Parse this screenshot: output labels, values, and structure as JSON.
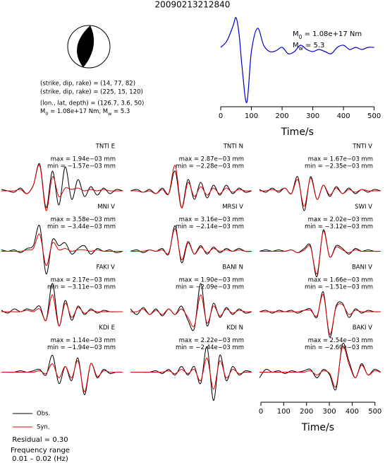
{
  "title": "20090213212840",
  "focal_mechanism": {
    "lines": [
      "(strike, dip, rake) = (14, 77, 82)",
      "(strike, dip, rake) = (225, 15, 120)",
      "(lon., lat, depth) = (126.7, 3.6, 50)"
    ],
    "moment_line": [
      "M",
      "0",
      " = 1.08e+17 Nm, M",
      "w",
      " = 5.3"
    ]
  },
  "chart_data": [
    {
      "type": "line",
      "color": "#0000cc",
      "x": [
        0,
        20,
        40,
        50,
        60,
        70,
        85,
        100,
        120,
        140,
        160,
        180,
        200,
        220,
        240,
        260,
        280,
        300,
        320,
        340,
        360,
        380,
        400,
        420,
        440,
        460,
        480,
        500
      ],
      "values": [
        0.3,
        0.45,
        0.8,
        1.0,
        0.6,
        -0.2,
        -1.0,
        0.2,
        0.75,
        0.35,
        0.2,
        0.22,
        0.3,
        0.15,
        0.2,
        0.35,
        0.25,
        0.2,
        0.25,
        0.2,
        0.15,
        0.3,
        0.35,
        0.25,
        0.3,
        0.25,
        0.3,
        0.3
      ],
      "xlim": [
        0,
        510
      ],
      "ylim": [
        -1,
        1
      ],
      "xticks": [
        0,
        100,
        200,
        300,
        400,
        500
      ],
      "xlabel": "Time/s",
      "annotations": [
        [
          "M",
          "0",
          " = 1.08e+17 Nm"
        ],
        [
          "M",
          "w",
          " = 5.3"
        ]
      ]
    },
    {
      "type": "waveform",
      "label": "TNTI E",
      "max": "max = 1.94e−03 mm",
      "min": "min = −1.57e−03 mm",
      "ylim": [
        -1,
        1
      ],
      "series": [
        {
          "color": "#000000",
          "values": [
            0.05,
            0,
            -0.05,
            0.1,
            -0.1,
            0.2,
            0.95,
            -0.6,
            0.7,
            -0.5,
            0.85,
            -0.3,
            0.4,
            -0.2,
            0.15,
            -0.15,
            0.1,
            -0.1,
            0.05,
            0
          ]
        },
        {
          "color": "#e00000",
          "values": [
            0,
            0,
            0,
            0.05,
            -0.1,
            0.2,
            0.9,
            -0.7,
            0.5,
            -0.2,
            0.1,
            0.05,
            0.1,
            0,
            0.05,
            0,
            0.05,
            0,
            0,
            0
          ]
        }
      ]
    },
    {
      "type": "waveform",
      "label": "TNTI N",
      "max": "max = 2.87e−03 mm",
      "min": "min = −2.28e−03 mm",
      "ylim": [
        -1,
        1
      ],
      "series": [
        {
          "color": "#000000",
          "values": [
            0,
            0.05,
            -0.05,
            0.05,
            -0.1,
            0.1,
            -0.1,
            0.7,
            -0.6,
            0.4,
            -0.3,
            0.3,
            -0.25,
            0.2,
            -0.15,
            0.2,
            -0.1,
            0.1,
            -0.05,
            0
          ]
        },
        {
          "color": "#e00000",
          "values": [
            0,
            0,
            -0.05,
            0,
            -0.1,
            0.05,
            -0.1,
            0.9,
            -0.6,
            0.3,
            -0.2,
            0.15,
            -0.15,
            0.1,
            -0.1,
            0.1,
            -0.05,
            0.05,
            0,
            0
          ]
        }
      ]
    },
    {
      "type": "waveform",
      "label": "TNTI V",
      "max": "max = 1.67e−03 mm",
      "min": "min = −2.35e−03 mm",
      "ylim": [
        -1,
        1
      ],
      "series": [
        {
          "color": "#000000",
          "values": [
            0.05,
            -0.05,
            0.1,
            -0.05,
            0.1,
            -0.1,
            0.5,
            -0.7,
            0.5,
            -0.3,
            0.2,
            -0.2,
            0.15,
            -0.1,
            0.1,
            -0.1,
            0.05,
            -0.05,
            0.05,
            0
          ]
        },
        {
          "color": "#e00000",
          "values": [
            0,
            0,
            0.05,
            0,
            0.1,
            -0.1,
            0.4,
            -0.55,
            0.45,
            -0.3,
            0.2,
            -0.15,
            0.1,
            -0.1,
            0.05,
            -0.05,
            0.05,
            0,
            0,
            0
          ]
        }
      ]
    },
    {
      "type": "waveform",
      "label": "MNI V",
      "max": "max = 3.58e−03 mm",
      "min": "min = −3.44e−03 mm",
      "ylim": [
        -1,
        1
      ],
      "series": [
        {
          "color": "#000000",
          "values": [
            0.05,
            0,
            0.05,
            -0.05,
            0.1,
            0.2,
            0.9,
            -0.8,
            0.4,
            0.2,
            0.3,
            -0.1,
            0.1,
            0.2,
            -0.1,
            0.1,
            0,
            0.05,
            -0.05,
            0
          ]
        },
        {
          "color": "#e00000",
          "values": [
            0,
            0,
            0,
            0,
            0.05,
            0.1,
            0.6,
            -0.5,
            0.3,
            0.05,
            0.1,
            0,
            0.05,
            0.05,
            0,
            0.05,
            0,
            0,
            0,
            0
          ]
        }
      ]
    },
    {
      "type": "waveform",
      "label": "MRSI V",
      "max": "max = 3.16e−03 mm",
      "min": "min = −2.14e−03 mm",
      "ylim": [
        -1,
        1
      ],
      "series": [
        {
          "color": "#000000",
          "values": [
            0,
            0.05,
            -0.05,
            0.05,
            0,
            0.1,
            -0.1,
            0.9,
            -0.4,
            0.3,
            -0.1,
            0.2,
            -0.1,
            0.15,
            -0.05,
            0.1,
            0,
            0.1,
            0,
            0
          ]
        },
        {
          "color": "#e00000",
          "values": [
            0,
            0,
            0,
            0.05,
            0,
            0.05,
            -0.05,
            0.8,
            -0.3,
            0.35,
            -0.1,
            0.15,
            -0.05,
            0.1,
            0,
            0.05,
            0,
            0.05,
            0,
            0
          ]
        }
      ]
    },
    {
      "type": "waveform",
      "label": "SWI V",
      "max": "max = 2.02e−03 mm",
      "min": "min = −3.12e−03 mm",
      "ylim": [
        -1,
        1
      ],
      "series": [
        {
          "color": "#000000",
          "values": [
            0,
            0.05,
            0,
            0.05,
            0,
            0.05,
            -0.05,
            0.1,
            0.2,
            -0.9,
            0.75,
            -0.2,
            0.2,
            0.1,
            -0.1,
            0.1,
            0,
            0.05,
            0,
            0
          ]
        },
        {
          "color": "#e00000",
          "values": [
            0,
            0,
            0,
            0,
            0,
            0.05,
            -0.05,
            0.05,
            0.15,
            -0.8,
            0.7,
            -0.2,
            0.15,
            0.05,
            -0.05,
            0.05,
            0,
            0,
            0,
            0
          ]
        }
      ]
    },
    {
      "type": "waveform",
      "label": "FAKI V",
      "max": "max = 2.17e−03 mm",
      "min": "min = −3.11e−03 mm",
      "ylim": [
        -1,
        1
      ],
      "series": [
        {
          "color": "#000000",
          "values": [
            0.05,
            -0.05,
            0.1,
            0,
            0.1,
            0.05,
            0.2,
            -0.3,
            1.0,
            -0.5,
            0.4,
            -0.3,
            0.2,
            -0.1,
            0.1,
            -0.05,
            0.05,
            0,
            0,
            0
          ]
        },
        {
          "color": "#e00000",
          "values": [
            0,
            0,
            0,
            0,
            0.05,
            0,
            0.1,
            -0.3,
            0.6,
            -0.5,
            0.3,
            -0.2,
            0.15,
            -0.05,
            0.05,
            0,
            0,
            0,
            0,
            0
          ]
        }
      ]
    },
    {
      "type": "waveform",
      "label": "BANI N",
      "max": "max = 1.90e−03 mm",
      "min": "min = −2.09e−03 mm",
      "ylim": [
        -1,
        1
      ],
      "series": [
        {
          "color": "#000000",
          "values": [
            0.1,
            -0.1,
            0.15,
            -0.1,
            0.1,
            -0.15,
            0.1,
            -0.1,
            0.2,
            -0.3,
            -0.6,
            1.0,
            -0.5,
            0.3,
            -0.2,
            0.15,
            -0.1,
            0.1,
            -0.05,
            0
          ]
        },
        {
          "color": "#e00000",
          "values": [
            0,
            0,
            0.1,
            -0.1,
            0.05,
            -0.1,
            0.1,
            -0.1,
            0.1,
            -0.2,
            -0.5,
            0.6,
            -0.4,
            0.2,
            -0.15,
            0.1,
            -0.05,
            0.05,
            0,
            0
          ]
        }
      ]
    },
    {
      "type": "waveform",
      "label": "BANI V",
      "max": "max = 1.66e−03 mm",
      "min": "min = −1.51e−03 mm",
      "ylim": [
        -1,
        1
      ],
      "series": [
        {
          "color": "#000000",
          "values": [
            0,
            0.05,
            -0.05,
            0.05,
            0,
            0.05,
            -0.05,
            0.05,
            0.1,
            -0.2,
            0.7,
            -0.9,
            0.2,
            0.3,
            -0.2,
            0.1,
            -0.05,
            0.05,
            0,
            0
          ]
        },
        {
          "color": "#e00000",
          "values": [
            0,
            0,
            0,
            0,
            0,
            0,
            0,
            0.05,
            0.05,
            -0.15,
            0.6,
            -0.8,
            0.15,
            0.25,
            -0.1,
            0.05,
            0,
            0,
            0,
            0
          ]
        }
      ]
    },
    {
      "type": "waveform",
      "label": "KDI E",
      "max": "max = 1.14e−03 mm",
      "min": "min = −1.94e−03 mm",
      "ylim": [
        -1,
        1
      ],
      "series": [
        {
          "color": "#000000",
          "values": [
            0,
            0,
            0,
            0.05,
            0,
            0.05,
            0.1,
            -0.1,
            0.6,
            -0.4,
            0.2,
            -0.3,
            0.5,
            -0.8,
            0.3,
            -0.2,
            0.1,
            -0.05,
            0,
            0
          ]
        },
        {
          "color": "#e00000",
          "values": [
            0,
            0,
            0,
            0,
            0,
            0,
            0.05,
            -0.05,
            0.3,
            -0.2,
            0.2,
            -0.2,
            0.4,
            -0.7,
            0.3,
            -0.15,
            0.05,
            0,
            0,
            0
          ]
        }
      ]
    },
    {
      "type": "waveform",
      "label": "KDI N",
      "max": "max = 2.22e−03 mm",
      "min": "min = −2.44e−03 mm",
      "ylim": [
        -1,
        1
      ],
      "series": [
        {
          "color": "#000000",
          "values": [
            0,
            0,
            0,
            0,
            0.05,
            -0.05,
            0.1,
            -0.1,
            0.2,
            -0.1,
            0.2,
            -0.4,
            0.9,
            -1.0,
            0.6,
            -0.3,
            0.2,
            -0.1,
            0.05,
            0
          ]
        },
        {
          "color": "#e00000",
          "values": [
            0,
            0,
            0,
            0,
            0,
            0,
            0.05,
            -0.05,
            0.1,
            -0.05,
            0.1,
            -0.3,
            0.5,
            -0.6,
            0.4,
            -0.2,
            0.1,
            -0.05,
            0,
            0
          ]
        }
      ]
    },
    {
      "type": "waveform",
      "label": "BAKI V",
      "max": "max = 2.54e−03 mm",
      "min": "min = −2.60e−03 mm",
      "ylim": [
        -1,
        1
      ],
      "series": [
        {
          "color": "#000000",
          "values": [
            -0.2,
            0.1,
            0,
            0.05,
            -0.05,
            0.05,
            0,
            0.05,
            0.1,
            -0.2,
            0.1,
            -0.1,
            -0.6,
            1.0,
            0.4,
            -0.2,
            0.3,
            -0.1,
            0.1,
            0
          ]
        },
        {
          "color": "#e00000",
          "values": [
            0,
            0,
            0,
            0,
            0,
            0,
            0,
            0,
            0.05,
            -0.1,
            0.05,
            -0.05,
            -0.5,
            0.9,
            0.3,
            -0.2,
            0.25,
            -0.1,
            0.05,
            0
          ]
        }
      ]
    },
    {
      "type": "axis",
      "xlim": [
        0,
        510
      ],
      "xticks": [
        0,
        100,
        200,
        300,
        400,
        500
      ],
      "xlabel": "Time/s"
    }
  ],
  "footer": {
    "legend": [
      {
        "name": "Obs.",
        "color": "#000000"
      },
      {
        "name": "Syn.",
        "color": "#e00000"
      }
    ],
    "residual": "Residual = 0.30",
    "frequency_label": "Frequency range",
    "frequency": "0.01 – 0.02 (Hz)"
  }
}
